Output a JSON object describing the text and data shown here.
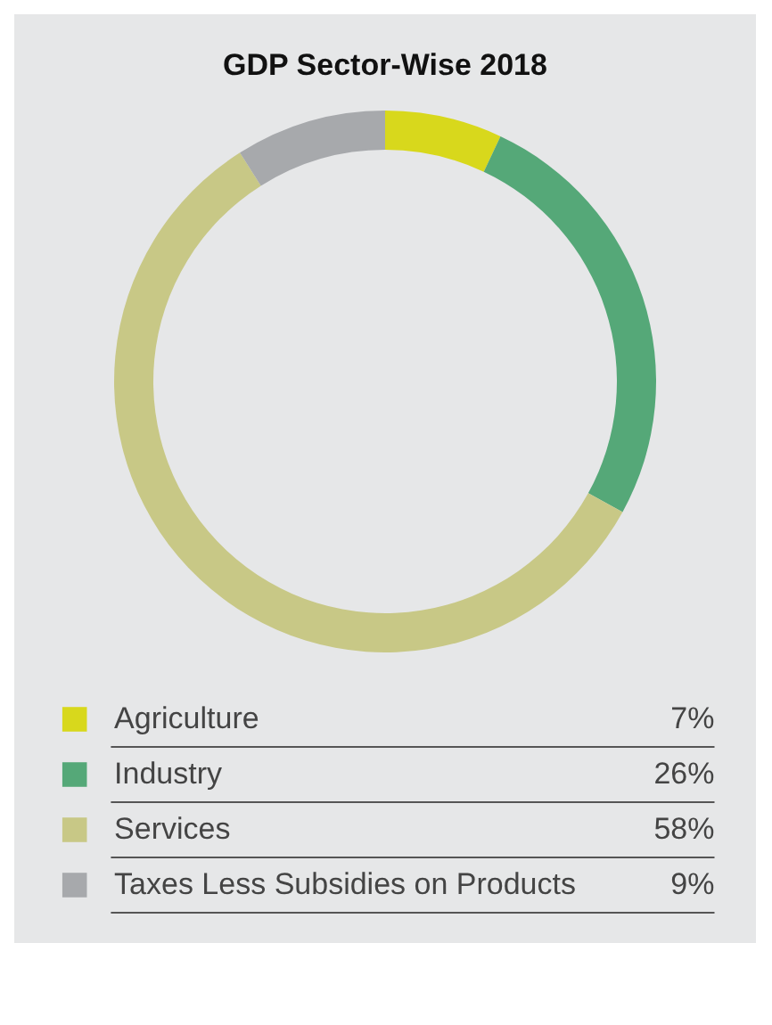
{
  "chart_data": {
    "type": "donut",
    "title": "GDP Sector-Wise 2018",
    "categories": [
      "Agriculture",
      "Industry",
      "Services",
      "Taxes Less Subsidies on Products"
    ],
    "values": [
      7,
      26,
      58,
      9
    ],
    "colors": [
      "#d8d81c",
      "#55a878",
      "#c8c886",
      "#a7a9ac"
    ],
    "value_labels": [
      "7%",
      "26%",
      "58%",
      "9%"
    ],
    "legend": "bottom"
  }
}
